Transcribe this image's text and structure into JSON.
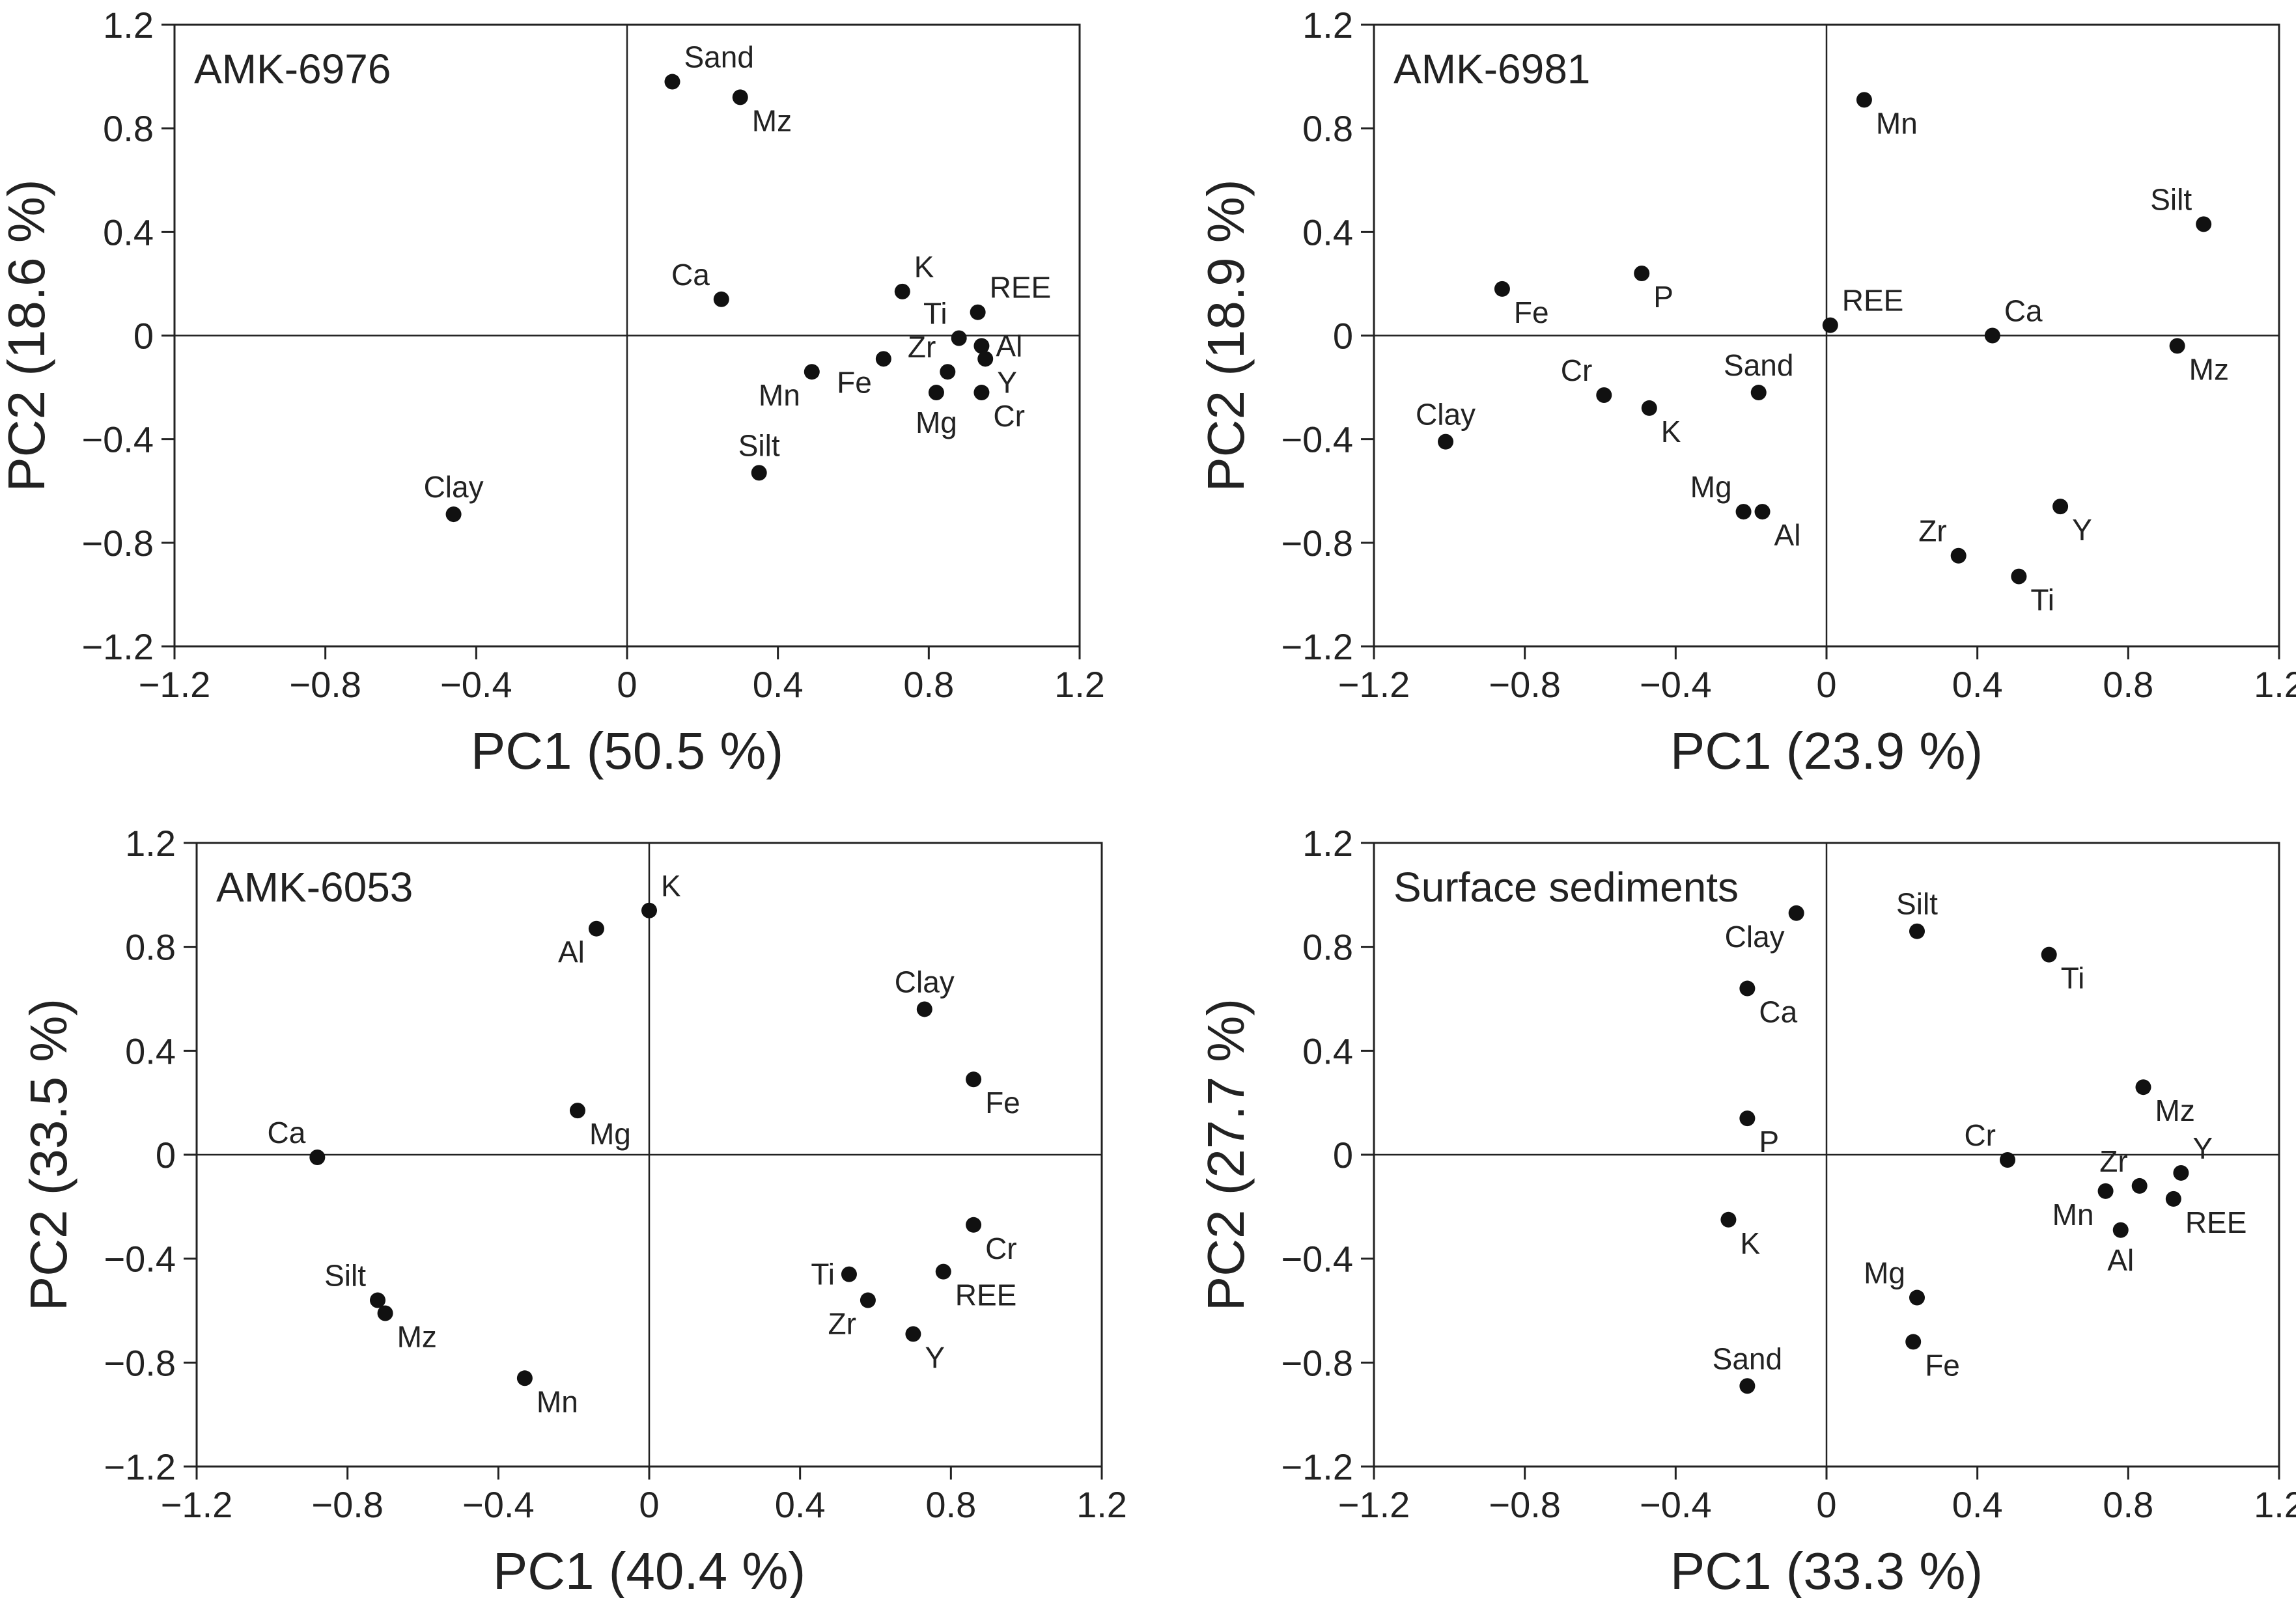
{
  "chart_data": [
    {
      "type": "scatter",
      "title": "AMK-6976",
      "xlabel": "PC1 (50.5 %)",
      "ylabel": "PC2 (18.6 %)",
      "xlim": [
        -1.2,
        1.2
      ],
      "ylim": [
        -1.2,
        1.2
      ],
      "xticks": [
        "−1.2",
        "−0.8",
        "−0.4",
        "0",
        "0.4",
        "0.8",
        "1.2"
      ],
      "yticks": [
        "1.2",
        "0.8",
        "0.4",
        "0",
        "−0.4",
        "−0.8",
        "−1.2"
      ],
      "points": [
        {
          "label": "Sand",
          "x": 0.12,
          "y": 0.98,
          "lpos": "ne"
        },
        {
          "label": "Mz",
          "x": 0.3,
          "y": 0.92,
          "lpos": "se"
        },
        {
          "label": "Ca",
          "x": 0.25,
          "y": 0.14,
          "lpos": "nw"
        },
        {
          "label": "K",
          "x": 0.73,
          "y": 0.17,
          "lpos": "ne"
        },
        {
          "label": "REE",
          "x": 0.93,
          "y": 0.09,
          "lpos": "ne"
        },
        {
          "label": "Ti",
          "x": 0.88,
          "y": -0.01,
          "lpos": "nw"
        },
        {
          "label": "Al",
          "x": 0.94,
          "y": -0.04,
          "lpos": "e"
        },
        {
          "label": "Zr",
          "x": 0.85,
          "y": -0.14,
          "lpos": "nw"
        },
        {
          "label": "Y",
          "x": 0.95,
          "y": -0.09,
          "lpos": "se"
        },
        {
          "label": "Fe",
          "x": 0.68,
          "y": -0.09,
          "lpos": "sw"
        },
        {
          "label": "Mn",
          "x": 0.49,
          "y": -0.14,
          "lpos": "sw"
        },
        {
          "label": "Mg",
          "x": 0.82,
          "y": -0.22,
          "lpos": "s"
        },
        {
          "label": "Cr",
          "x": 0.94,
          "y": -0.22,
          "lpos": "se"
        },
        {
          "label": "Silt",
          "x": 0.35,
          "y": -0.53,
          "lpos": "n"
        },
        {
          "label": "Clay",
          "x": -0.46,
          "y": -0.69,
          "lpos": "n"
        }
      ]
    },
    {
      "type": "scatter",
      "title": "AMK-6981",
      "xlabel": "PC1 (23.9 %)",
      "ylabel": "PC2 (18.9 %)",
      "xlim": [
        -1.2,
        1.2
      ],
      "ylim": [
        -1.2,
        1.2
      ],
      "xticks": [
        "−1.2",
        "−0.8",
        "−0.4",
        "0",
        "0.4",
        "0.8",
        "1.2"
      ],
      "yticks": [
        "1.2",
        "0.8",
        "0.4",
        "0",
        "−0.4",
        "−0.8",
        "−1.2"
      ],
      "points": [
        {
          "label": "Mn",
          "x": 0.1,
          "y": 0.91,
          "lpos": "se"
        },
        {
          "label": "Silt",
          "x": 1.0,
          "y": 0.43,
          "lpos": "nw"
        },
        {
          "label": "Fe",
          "x": -0.86,
          "y": 0.18,
          "lpos": "se"
        },
        {
          "label": "P",
          "x": -0.49,
          "y": 0.24,
          "lpos": "se"
        },
        {
          "label": "REE",
          "x": 0.01,
          "y": 0.04,
          "lpos": "ne"
        },
        {
          "label": "Ca",
          "x": 0.44,
          "y": 0.0,
          "lpos": "ne"
        },
        {
          "label": "Mz",
          "x": 0.93,
          "y": -0.04,
          "lpos": "se"
        },
        {
          "label": "Sand",
          "x": -0.18,
          "y": -0.22,
          "lpos": "n"
        },
        {
          "label": "Cr",
          "x": -0.59,
          "y": -0.23,
          "lpos": "nw"
        },
        {
          "label": "K",
          "x": -0.47,
          "y": -0.28,
          "lpos": "se"
        },
        {
          "label": "Clay",
          "x": -1.01,
          "y": -0.41,
          "lpos": "n"
        },
        {
          "label": "Mg",
          "x": -0.22,
          "y": -0.68,
          "lpos": "nw"
        },
        {
          "label": "Al",
          "x": -0.17,
          "y": -0.68,
          "lpos": "se"
        },
        {
          "label": "Y",
          "x": 0.62,
          "y": -0.66,
          "lpos": "se"
        },
        {
          "label": "Zr",
          "x": 0.35,
          "y": -0.85,
          "lpos": "nw"
        },
        {
          "label": "Ti",
          "x": 0.51,
          "y": -0.93,
          "lpos": "se"
        }
      ]
    },
    {
      "type": "scatter",
      "title": "AMK-6053",
      "xlabel": "PC1 (40.4 %)",
      "ylabel": "PC2 (33.5 %)",
      "xlim": [
        -1.2,
        1.2
      ],
      "ylim": [
        -1.2,
        1.2
      ],
      "xticks": [
        "−1.2",
        "−0.8",
        "−0.4",
        "0",
        "0.4",
        "0.8",
        "1.2"
      ],
      "yticks": [
        "1.2",
        "0.8",
        "0.4",
        "0",
        "−0.4",
        "−0.8",
        "−1.2"
      ],
      "points": [
        {
          "label": "K",
          "x": 0.0,
          "y": 0.94,
          "lpos": "ne"
        },
        {
          "label": "Al",
          "x": -0.14,
          "y": 0.87,
          "lpos": "sw"
        },
        {
          "label": "Clay",
          "x": 0.73,
          "y": 0.56,
          "lpos": "n"
        },
        {
          "label": "Fe",
          "x": 0.86,
          "y": 0.29,
          "lpos": "se"
        },
        {
          "label": "Mg",
          "x": -0.19,
          "y": 0.17,
          "lpos": "se"
        },
        {
          "label": "Ca",
          "x": -0.88,
          "y": -0.01,
          "lpos": "nw"
        },
        {
          "label": "Cr",
          "x": 0.86,
          "y": -0.27,
          "lpos": "se"
        },
        {
          "label": "Ti",
          "x": 0.53,
          "y": -0.46,
          "lpos": "w"
        },
        {
          "label": "REE",
          "x": 0.78,
          "y": -0.45,
          "lpos": "se"
        },
        {
          "label": "Zr",
          "x": 0.58,
          "y": -0.56,
          "lpos": "sw"
        },
        {
          "label": "Y",
          "x": 0.7,
          "y": -0.69,
          "lpos": "se"
        },
        {
          "label": "Silt",
          "x": -0.72,
          "y": -0.56,
          "lpos": "nw"
        },
        {
          "label": "Mz",
          "x": -0.7,
          "y": -0.61,
          "lpos": "se"
        },
        {
          "label": "Mn",
          "x": -0.33,
          "y": -0.86,
          "lpos": "se"
        }
      ]
    },
    {
      "type": "scatter",
      "title": "Surface sediments",
      "xlabel": "PC1 (33.3 %)",
      "ylabel": "PC2 (27.7 %)",
      "xlim": [
        -1.2,
        1.2
      ],
      "ylim": [
        -1.2,
        1.2
      ],
      "xticks": [
        "−1.2",
        "−0.8",
        "−0.4",
        "0",
        "0.4",
        "0.8",
        "1.2"
      ],
      "yticks": [
        "1.2",
        "0.8",
        "0.4",
        "0",
        "−0.4",
        "−0.8",
        "−1.2"
      ],
      "points": [
        {
          "label": "Clay",
          "x": -0.08,
          "y": 0.93,
          "lpos": "sw"
        },
        {
          "label": "Silt",
          "x": 0.24,
          "y": 0.86,
          "lpos": "n"
        },
        {
          "label": "Ti",
          "x": 0.59,
          "y": 0.77,
          "lpos": "se"
        },
        {
          "label": "Ca",
          "x": -0.21,
          "y": 0.64,
          "lpos": "se"
        },
        {
          "label": "Mz",
          "x": 0.84,
          "y": 0.26,
          "lpos": "se"
        },
        {
          "label": "P",
          "x": -0.21,
          "y": 0.14,
          "lpos": "se"
        },
        {
          "label": "Cr",
          "x": 0.48,
          "y": -0.02,
          "lpos": "nw"
        },
        {
          "label": "Y",
          "x": 0.94,
          "y": -0.07,
          "lpos": "ne"
        },
        {
          "label": "Zr",
          "x": 0.83,
          "y": -0.12,
          "lpos": "nw"
        },
        {
          "label": "Mn",
          "x": 0.74,
          "y": -0.14,
          "lpos": "sw"
        },
        {
          "label": "REE",
          "x": 0.92,
          "y": -0.17,
          "lpos": "se"
        },
        {
          "label": "Al",
          "x": 0.78,
          "y": -0.29,
          "lpos": "s"
        },
        {
          "label": "K",
          "x": -0.26,
          "y": -0.25,
          "lpos": "se"
        },
        {
          "label": "Mg",
          "x": 0.24,
          "y": -0.55,
          "lpos": "nw"
        },
        {
          "label": "Fe",
          "x": 0.23,
          "y": -0.72,
          "lpos": "se"
        },
        {
          "label": "Sand",
          "x": -0.21,
          "y": -0.89,
          "lpos": "n"
        }
      ]
    }
  ]
}
